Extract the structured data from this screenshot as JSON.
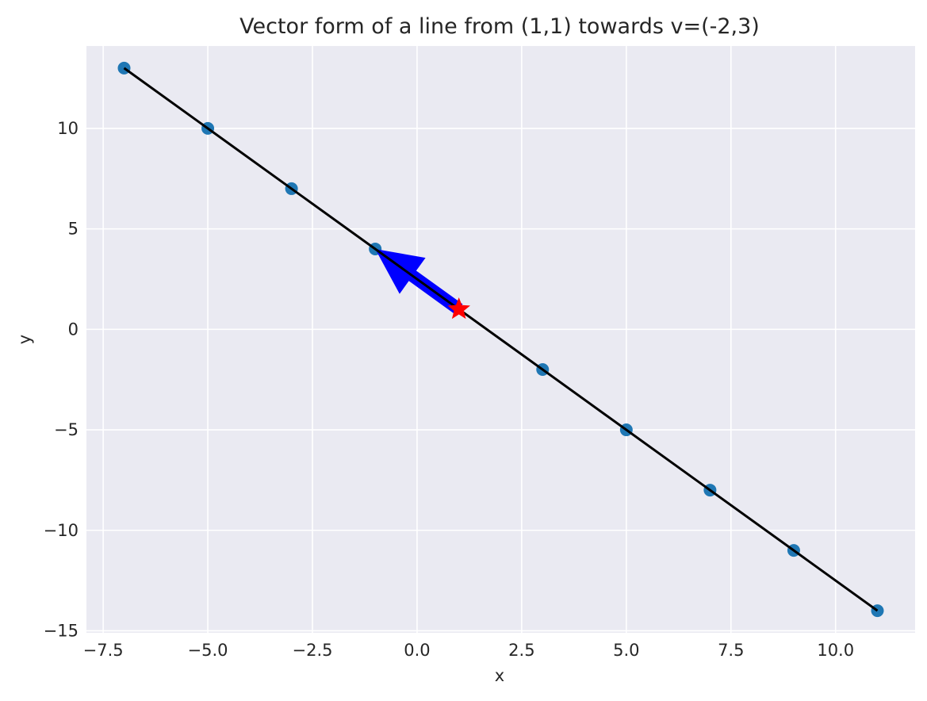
{
  "chart_data": {
    "type": "scatter",
    "title": "Vector form of a line from (1,1) towards v=(-2,3)",
    "xlabel": "x",
    "ylabel": "y",
    "xlim": [
      -7.9,
      11.9
    ],
    "ylim": [
      -15.1,
      14.1
    ],
    "x_ticks": [
      -7.5,
      -5.0,
      -2.5,
      0.0,
      2.5,
      5.0,
      7.5,
      10.0
    ],
    "x_tick_labels": [
      "−7.5",
      "−5.0",
      "−2.5",
      "0.0",
      "2.5",
      "5.0",
      "7.5",
      "10.0"
    ],
    "y_ticks": [
      -15,
      -10,
      -5,
      0,
      5,
      10
    ],
    "y_tick_labels": [
      "−15",
      "−10",
      "−5",
      "0",
      "5",
      "10"
    ],
    "grid": true,
    "colors": {
      "background": "#eaeaf2",
      "grid": "#ffffff",
      "points": "#1f77b4",
      "line": "#000000",
      "arrow": "#0000ff",
      "star": "#ff0000"
    },
    "series": [
      {
        "kind": "points",
        "x": [
          -7,
          -5,
          -3,
          -1,
          3,
          5,
          7,
          9,
          11
        ],
        "y": [
          13,
          10,
          7,
          4,
          -2,
          -5,
          -8,
          -11,
          -14
        ]
      },
      {
        "kind": "line",
        "x": [
          -7,
          11
        ],
        "y": [
          13,
          -14
        ]
      }
    ],
    "vector": {
      "start": [
        1,
        1
      ],
      "direction": [
        -2,
        3
      ]
    },
    "marker_point": {
      "x": 1,
      "y": 1,
      "shape": "star"
    }
  }
}
